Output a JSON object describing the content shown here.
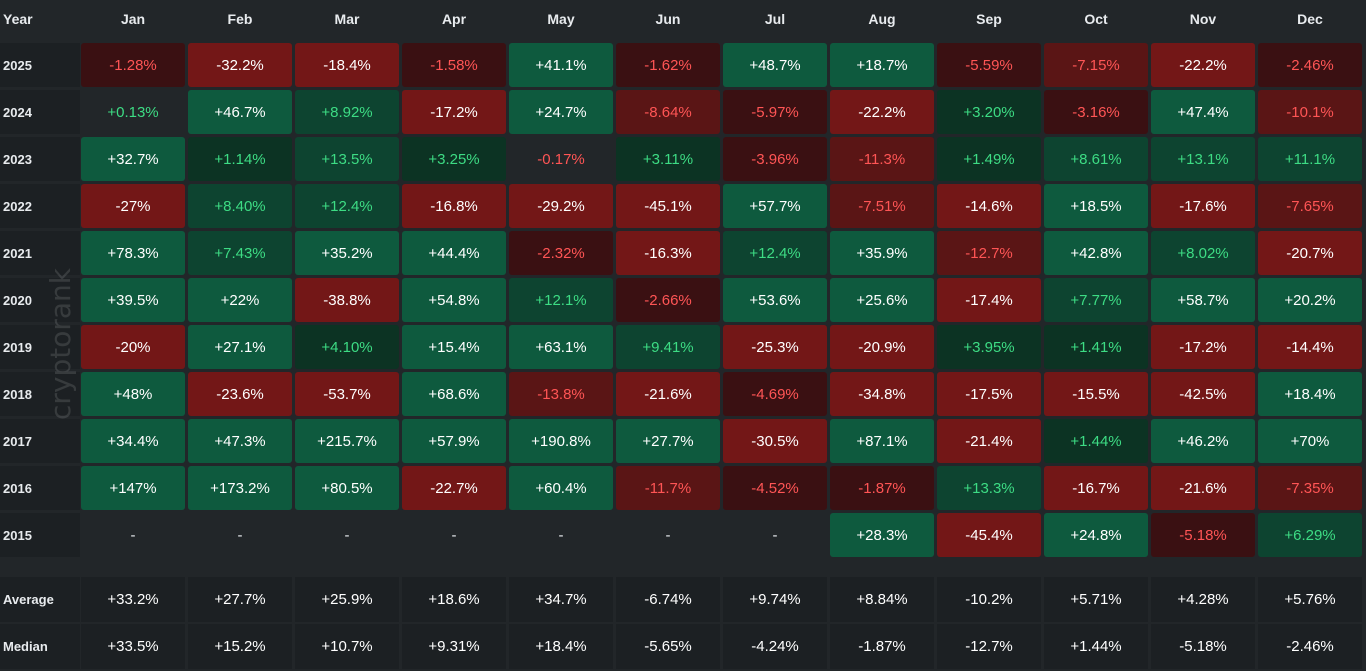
{
  "chart_data": {
    "type": "heatmap",
    "title": "",
    "year_header": "Year",
    "columns": [
      "Jan",
      "Feb",
      "Mar",
      "Apr",
      "May",
      "Jun",
      "Jul",
      "Aug",
      "Sep",
      "Oct",
      "Nov",
      "Dec"
    ],
    "rows": [
      {
        "year": "2025",
        "values": [
          "-1.28%",
          "-32.2%",
          "-18.4%",
          "-1.58%",
          "+41.1%",
          "-1.62%",
          "+48.7%",
          "+18.7%",
          "-5.59%",
          "-7.15%",
          "-22.2%",
          "-2.46%"
        ]
      },
      {
        "year": "2024",
        "values": [
          "+0.13%",
          "+46.7%",
          "+8.92%",
          "-17.2%",
          "+24.7%",
          "-8.64%",
          "-5.97%",
          "-22.2%",
          "+3.20%",
          "-3.16%",
          "+47.4%",
          "-10.1%"
        ]
      },
      {
        "year": "2023",
        "values": [
          "+32.7%",
          "+1.14%",
          "+13.5%",
          "+3.25%",
          "-0.17%",
          "+3.11%",
          "-3.96%",
          "-11.3%",
          "+1.49%",
          "+8.61%",
          "+13.1%",
          "+11.1%"
        ]
      },
      {
        "year": "2022",
        "values": [
          "-27%",
          "+8.40%",
          "+12.4%",
          "-16.8%",
          "-29.2%",
          "-45.1%",
          "+57.7%",
          "-7.51%",
          "-14.6%",
          "+18.5%",
          "-17.6%",
          "-7.65%"
        ]
      },
      {
        "year": "2021",
        "values": [
          "+78.3%",
          "+7.43%",
          "+35.2%",
          "+44.4%",
          "-2.32%",
          "-16.3%",
          "+12.4%",
          "+35.9%",
          "-12.7%",
          "+42.8%",
          "+8.02%",
          "-20.7%"
        ]
      },
      {
        "year": "2020",
        "values": [
          "+39.5%",
          "+22%",
          "-38.8%",
          "+54.8%",
          "+12.1%",
          "-2.66%",
          "+53.6%",
          "+25.6%",
          "-17.4%",
          "+7.77%",
          "+58.7%",
          "+20.2%"
        ]
      },
      {
        "year": "2019",
        "values": [
          "-20%",
          "+27.1%",
          "+4.10%",
          "+15.4%",
          "+63.1%",
          "+9.41%",
          "-25.3%",
          "-20.9%",
          "+3.95%",
          "+1.41%",
          "-17.2%",
          "-14.4%"
        ]
      },
      {
        "year": "2018",
        "values": [
          "+48%",
          "-23.6%",
          "-53.7%",
          "+68.6%",
          "-13.8%",
          "-21.6%",
          "-4.69%",
          "-34.8%",
          "-17.5%",
          "-15.5%",
          "-42.5%",
          "+18.4%"
        ]
      },
      {
        "year": "2017",
        "values": [
          "+34.4%",
          "+47.3%",
          "+215.7%",
          "+57.9%",
          "+190.8%",
          "+27.7%",
          "-30.5%",
          "+87.1%",
          "-21.4%",
          "+1.44%",
          "+46.2%",
          "+70%"
        ]
      },
      {
        "year": "2016",
        "values": [
          "+147%",
          "+173.2%",
          "+80.5%",
          "-22.7%",
          "+60.4%",
          "-11.7%",
          "-4.52%",
          "-1.87%",
          "+13.3%",
          "-16.7%",
          "-21.6%",
          "-7.35%"
        ]
      },
      {
        "year": "2015",
        "values": [
          "-",
          "-",
          "-",
          "-",
          "-",
          "-",
          "-",
          "+28.3%",
          "-45.4%",
          "+24.8%",
          "-5.18%",
          "+6.29%"
        ]
      }
    ],
    "summary": [
      {
        "label": "Average",
        "values": [
          "+33.2%",
          "+27.7%",
          "+25.9%",
          "+18.6%",
          "+34.7%",
          "-6.74%",
          "+9.74%",
          "+8.84%",
          "-10.2%",
          "+5.71%",
          "+4.28%",
          "+5.76%"
        ]
      },
      {
        "label": "Median",
        "values": [
          "+33.5%",
          "+15.2%",
          "+10.7%",
          "+9.31%",
          "+18.4%",
          "-5.65%",
          "-4.24%",
          "-1.87%",
          "-12.7%",
          "+1.44%",
          "-5.18%",
          "-2.46%"
        ]
      }
    ],
    "watermark": "cryptorank",
    "colors": {
      "background": "#222629",
      "label_bg": "#1c2023",
      "pos_text_light": "#2ecc71",
      "neg_text_light": "#ff4d4d",
      "text_strong": "#ffffff"
    }
  }
}
